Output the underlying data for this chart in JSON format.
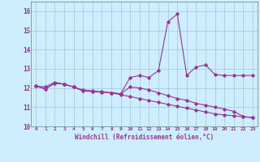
{
  "xlabel": "Windchill (Refroidissement éolien,°C)",
  "background_color": "#cceeff",
  "line_color": "#993399",
  "ylim": [
    10,
    16.5
  ],
  "xlim": [
    -0.5,
    23.5
  ],
  "yticks": [
    10,
    11,
    12,
    13,
    14,
    15,
    16
  ],
  "xticks": [
    0,
    1,
    2,
    3,
    4,
    5,
    6,
    7,
    8,
    9,
    10,
    11,
    12,
    13,
    14,
    15,
    16,
    17,
    18,
    19,
    20,
    21,
    22,
    23
  ],
  "series": {
    "line1": [
      12.1,
      11.95,
      12.25,
      12.2,
      12.05,
      11.85,
      11.82,
      11.78,
      11.75,
      11.7,
      12.55,
      12.65,
      12.55,
      12.9,
      15.45,
      15.85,
      12.65,
      13.1,
      13.2,
      12.7,
      12.65,
      12.65,
      12.65,
      12.65
    ],
    "line2": [
      12.1,
      11.95,
      12.25,
      12.2,
      12.05,
      11.85,
      11.82,
      11.78,
      11.75,
      11.7,
      12.05,
      12.0,
      11.9,
      11.75,
      11.6,
      11.45,
      11.35,
      11.2,
      11.1,
      11.0,
      10.9,
      10.78,
      10.52,
      10.45
    ],
    "line3": [
      12.1,
      12.05,
      12.3,
      12.2,
      12.05,
      11.9,
      11.85,
      11.8,
      11.75,
      11.65,
      11.55,
      11.45,
      11.35,
      11.25,
      11.15,
      11.05,
      10.95,
      10.85,
      10.75,
      10.65,
      10.6,
      10.55,
      10.5,
      10.45
    ]
  }
}
